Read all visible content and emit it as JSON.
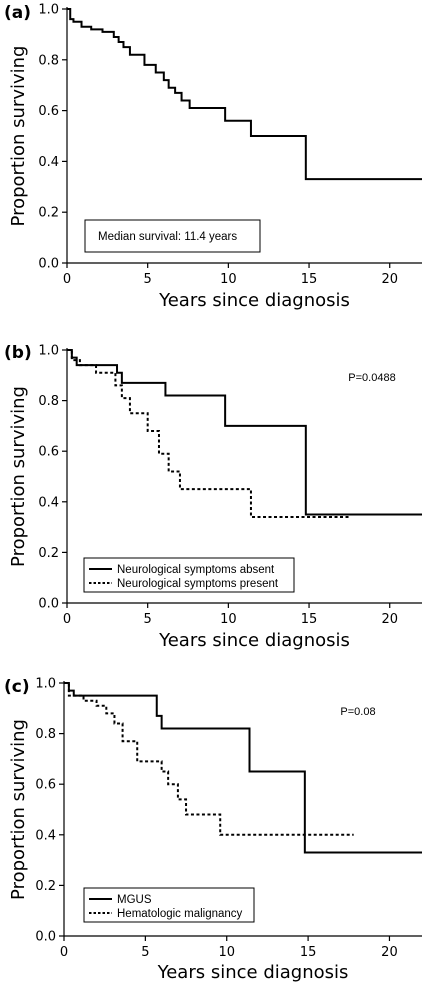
{
  "chart_data": [
    {
      "type": "line",
      "panel_label": "(a)",
      "xlabel": "Years since diagnosis",
      "ylabel": "Proportion surviving",
      "xlim": [
        0,
        22
      ],
      "ylim": [
        0,
        1
      ],
      "xticks": [
        "0",
        "5",
        "10",
        "15",
        "20"
      ],
      "yticks": [
        "0.0",
        "0.2",
        "0.4",
        "0.6",
        "0.8",
        "1.0"
      ],
      "annotation": "Median survival: 11.4 years",
      "series": [
        {
          "style": "solid",
          "x": [
            0,
            0.2,
            0.4,
            0.9,
            1.5,
            2.2,
            2.9,
            3.2,
            3.5,
            3.9,
            4.8,
            5.5,
            6.0,
            6.3,
            6.7,
            7.1,
            7.6,
            9.8,
            11.4,
            14.8,
            22
          ],
          "y": [
            1.0,
            0.96,
            0.95,
            0.93,
            0.92,
            0.91,
            0.89,
            0.87,
            0.85,
            0.82,
            0.78,
            0.75,
            0.72,
            0.69,
            0.67,
            0.64,
            0.61,
            0.56,
            0.5,
            0.33,
            0.33
          ]
        }
      ]
    },
    {
      "type": "line",
      "panel_label": "(b)",
      "xlabel": "Years since diagnosis",
      "ylabel": "Proportion surviving",
      "xlim": [
        0,
        22
      ],
      "ylim": [
        0,
        1
      ],
      "xticks": [
        "0",
        "5",
        "10",
        "15",
        "20"
      ],
      "yticks": [
        "0.0",
        "0.2",
        "0.4",
        "0.6",
        "0.8",
        "1.0"
      ],
      "pvalue": "P=0.0488",
      "series": [
        {
          "name": "Neurological symptoms absent",
          "style": "solid",
          "x": [
            0,
            0.3,
            0.6,
            3.1,
            3.4,
            6.1,
            9.8,
            14.8,
            22
          ],
          "y": [
            1.0,
            0.97,
            0.94,
            0.91,
            0.87,
            0.82,
            0.7,
            0.35,
            0.35
          ]
        },
        {
          "name": "Neurological symptoms present",
          "style": "dotted",
          "x": [
            0,
            0.3,
            0.8,
            1.8,
            3.0,
            3.4,
            3.9,
            5.0,
            5.7,
            6.3,
            7.0,
            11.4,
            17.5
          ],
          "y": [
            1.0,
            0.96,
            0.94,
            0.91,
            0.86,
            0.81,
            0.75,
            0.68,
            0.59,
            0.52,
            0.45,
            0.34,
            0.34
          ]
        }
      ]
    },
    {
      "type": "line",
      "panel_label": "(c)",
      "xlabel": "Years since diagnosis",
      "ylabel": "Proportion surviving",
      "xlim": [
        0,
        22
      ],
      "ylim": [
        0,
        1
      ],
      "xticks": [
        "0",
        "5",
        "10",
        "15",
        "20"
      ],
      "yticks": [
        "0.0",
        "0.2",
        "0.4",
        "0.6",
        "0.8",
        "1.0"
      ],
      "pvalue": "P=0.08",
      "series": [
        {
          "name": "MGUS",
          "style": "solid",
          "x": [
            0,
            0.3,
            0.6,
            5.7,
            6.0,
            11.4,
            14.8,
            22
          ],
          "y": [
            1.0,
            0.97,
            0.95,
            0.87,
            0.82,
            0.65,
            0.33,
            0.33
          ]
        },
        {
          "name": "Hematologic malignancy",
          "style": "dotted",
          "x": [
            0,
            0.3,
            1.2,
            2.0,
            2.6,
            3.1,
            3.6,
            4.5,
            6.0,
            6.4,
            7.0,
            7.5,
            8.0,
            9.6,
            17.8
          ],
          "y": [
            1.0,
            0.95,
            0.93,
            0.91,
            0.88,
            0.84,
            0.77,
            0.69,
            0.65,
            0.6,
            0.54,
            0.48,
            0.48,
            0.4,
            0.4
          ]
        }
      ]
    }
  ]
}
